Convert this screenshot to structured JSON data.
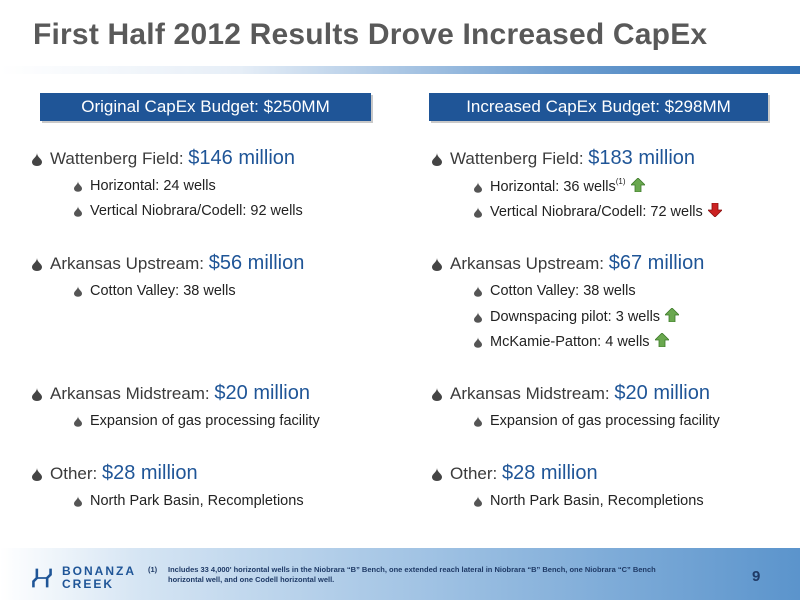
{
  "title": "First Half 2012 Results Drove Increased CapEx",
  "left": {
    "header": "Original CapEx Budget: $250MM",
    "groups": [
      {
        "label": "Wattenberg Field: ",
        "amount": "$146 million",
        "subs": [
          "Horizontal: 24 wells",
          "Vertical Niobrara/Codell: 92 wells"
        ]
      },
      {
        "label": "Arkansas Upstream: ",
        "amount": "$56 million",
        "subs": [
          "Cotton Valley: 38 wells"
        ]
      },
      {
        "label": "Arkansas Midstream: ",
        "amount": "$20 million",
        "subs": [
          "Expansion of gas processing facility"
        ]
      },
      {
        "label": "Other: ",
        "amount": "$28 million",
        "subs": [
          "North Park Basin, Recompletions"
        ]
      }
    ]
  },
  "right": {
    "header": "Increased CapEx Budget: $298MM",
    "groups": [
      {
        "label": "Wattenberg Field: ",
        "amount": "$183 million",
        "subs": [
          "Horizontal: 36 wells",
          "Vertical Niobrara/Codell: 72 wells"
        ],
        "sup": "(1)"
      },
      {
        "label": "Arkansas Upstream: ",
        "amount": "$67 million",
        "subs": [
          "Cotton Valley: 38 wells",
          "Downspacing pilot: 3 wells",
          "McKamie-Patton: 4 wells"
        ]
      },
      {
        "label": "Arkansas Midstream: ",
        "amount": "$20 million",
        "subs": [
          "Expansion of gas processing facility"
        ]
      },
      {
        "label": "Other: ",
        "amount": "$28 million",
        "subs": [
          "North Park Basin, Recompletions"
        ]
      }
    ]
  },
  "colors": {
    "accent": "#1f5597",
    "arrow_up": "#6aa84f",
    "arrow_down": "#cc2222"
  },
  "footer": {
    "logo_line1": "BONANZA",
    "logo_line2": "CREEK",
    "footnote_num": "(1)",
    "footnote": "Includes 33 4,000' horizontal wells in the Niobrara “B” Bench, one extended reach lateral in Niobrara “B” Bench, one Niobrara “C” Bench horizontal well, and one Codell horizontal well.",
    "page": "9"
  }
}
